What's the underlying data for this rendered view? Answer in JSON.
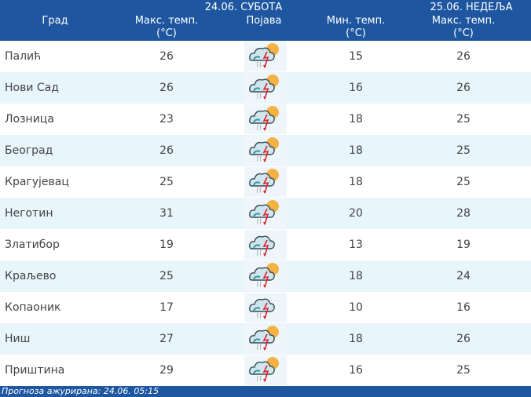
{
  "header": {
    "day1": "24.06. СУБОТА",
    "day2": "25.06. НЕДЕЉА",
    "city": "Град",
    "max1": "Макс. темп.",
    "unit": "(°C)",
    "phenomenon": "Појава",
    "min": "Мин. темп.",
    "max2": "Макс. темп."
  },
  "rows": [
    {
      "city": "Палић",
      "max1": "26",
      "icon": "storm-sun-icon",
      "min": "15",
      "max2": "26"
    },
    {
      "city": "Нови Сад",
      "max1": "26",
      "icon": "storm-sun-icon",
      "min": "16",
      "max2": "26"
    },
    {
      "city": "Лозница",
      "max1": "23",
      "icon": "storm-sun-icon",
      "min": "18",
      "max2": "25"
    },
    {
      "city": "Београд",
      "max1": "26",
      "icon": "storm-sun-icon",
      "min": "18",
      "max2": "25"
    },
    {
      "city": "Крагујевац",
      "max1": "25",
      "icon": "storm-sun-icon",
      "min": "18",
      "max2": "25"
    },
    {
      "city": "Неготин",
      "max1": "31",
      "icon": "storm-sun-icon",
      "min": "20",
      "max2": "28"
    },
    {
      "city": "Златибор",
      "max1": "19",
      "icon": "storm-icon",
      "min": "13",
      "max2": "19"
    },
    {
      "city": "Краљево",
      "max1": "25",
      "icon": "storm-sun-icon",
      "min": "18",
      "max2": "24"
    },
    {
      "city": "Копаоник",
      "max1": "17",
      "icon": "storm-icon",
      "min": "10",
      "max2": "16"
    },
    {
      "city": "Ниш",
      "max1": "27",
      "icon": "storm-sun-icon",
      "min": "18",
      "max2": "26"
    },
    {
      "city": "Приштина",
      "max1": "29",
      "icon": "storm-sun-icon",
      "min": "16",
      "max2": "25"
    }
  ],
  "footer": "Прогноза ажурирана:  24.06. 05:15",
  "colors": {
    "header": "#1e56a0",
    "alt_row": "#e8f5fb"
  }
}
